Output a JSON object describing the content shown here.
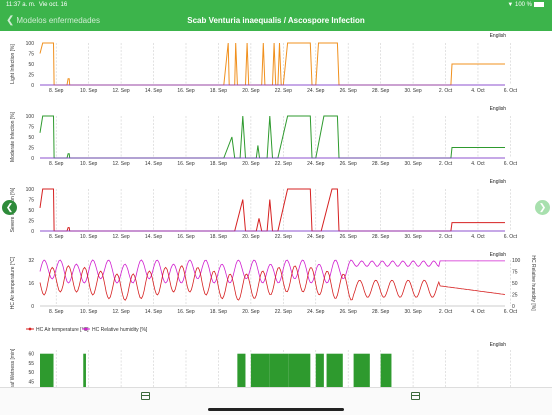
{
  "status": {
    "time": "11:37 a. m.",
    "date": "Vie oct. 16",
    "battery": "100 %"
  },
  "nav": {
    "back_label": "Modelos enfermedades",
    "title": "Scab Venturia inaequalis / Ascospore Infection"
  },
  "lang_label": "English",
  "x_ticks": [
    "8. Sep",
    "10. Sep",
    "12. Sep",
    "14. Sep",
    "16. Sep",
    "18. Sep",
    "20. Sep",
    "22. Sep",
    "24. Sep",
    "26. Sep",
    "28. Sep",
    "30. Sep",
    "2. Oct",
    "4. Oct",
    "6. Oct"
  ],
  "colors": {
    "orange": "#f0901e",
    "green": "#2e9a2e",
    "red": "#d62020",
    "magenta": "#d020d0",
    "accent": "#3cb44b"
  },
  "charts": [
    {
      "ylabel": "Light Infection [%]",
      "color": "#f0901e",
      "y_ticks": [
        "0",
        "25",
        "50",
        "75",
        "100"
      ],
      "ymax": 100,
      "points": [
        [
          0,
          75
        ],
        [
          0.5,
          100
        ],
        [
          2.5,
          100
        ],
        [
          2.6,
          0
        ],
        [
          5,
          0
        ],
        [
          5.2,
          15
        ],
        [
          5.4,
          15
        ],
        [
          5.5,
          0
        ],
        [
          34,
          0
        ],
        [
          34.8,
          100
        ],
        [
          35,
          0
        ],
        [
          36,
          0
        ],
        [
          36.2,
          100
        ],
        [
          36.5,
          0
        ],
        [
          38,
          0
        ],
        [
          38.3,
          100
        ],
        [
          38.6,
          0
        ],
        [
          41,
          0
        ],
        [
          41.3,
          100
        ],
        [
          41.6,
          0
        ],
        [
          43,
          0
        ],
        [
          43.3,
          100
        ],
        [
          43.6,
          0
        ],
        [
          44,
          0
        ],
        [
          44.3,
          100
        ],
        [
          44.6,
          0
        ],
        [
          45,
          0
        ],
        [
          45.8,
          100
        ],
        [
          49,
          100
        ],
        [
          50,
          100
        ],
        [
          50.3,
          0
        ],
        [
          51,
          0
        ],
        [
          51.5,
          100
        ],
        [
          55,
          100
        ],
        [
          55.3,
          0
        ],
        [
          76,
          0
        ],
        [
          76.2,
          50
        ],
        [
          86,
          50
        ]
      ]
    },
    {
      "ylabel": "Moderate Infection [%]",
      "color": "#2e9a2e",
      "y_ticks": [
        "0",
        "25",
        "50",
        "75",
        "100"
      ],
      "ymax": 100,
      "points": [
        [
          0,
          60
        ],
        [
          0.5,
          100
        ],
        [
          2.5,
          100
        ],
        [
          2.6,
          0
        ],
        [
          5,
          0
        ],
        [
          5.2,
          10
        ],
        [
          5.4,
          10
        ],
        [
          5.5,
          0
        ],
        [
          34,
          0
        ],
        [
          35.5,
          50
        ],
        [
          36,
          0
        ],
        [
          37,
          0
        ],
        [
          37.5,
          100
        ],
        [
          38,
          0
        ],
        [
          40,
          0
        ],
        [
          40.3,
          30
        ],
        [
          40.6,
          0
        ],
        [
          42,
          0
        ],
        [
          42.5,
          100
        ],
        [
          43,
          0
        ],
        [
          44,
          0
        ],
        [
          45.8,
          100
        ],
        [
          50,
          100
        ],
        [
          50.3,
          0
        ],
        [
          51,
          0
        ],
        [
          52.5,
          100
        ],
        [
          55,
          100
        ],
        [
          55.3,
          0
        ],
        [
          76,
          0
        ],
        [
          76.2,
          25
        ],
        [
          86,
          25
        ]
      ]
    },
    {
      "ylabel": "Severe Infection [%]",
      "color": "#d62020",
      "y_ticks": [
        "0",
        "25",
        "50",
        "75",
        "100"
      ],
      "ymax": 100,
      "points": [
        [
          0,
          55
        ],
        [
          0.5,
          100
        ],
        [
          2.5,
          100
        ],
        [
          2.6,
          0
        ],
        [
          5,
          0
        ],
        [
          5.2,
          8
        ],
        [
          5.4,
          8
        ],
        [
          5.5,
          0
        ],
        [
          36,
          0
        ],
        [
          37.5,
          75
        ],
        [
          38,
          0
        ],
        [
          40,
          0
        ],
        [
          40.5,
          30
        ],
        [
          41,
          0
        ],
        [
          42,
          0
        ],
        [
          42.5,
          75
        ],
        [
          43,
          0
        ],
        [
          44,
          0
        ],
        [
          45.8,
          100
        ],
        [
          50,
          100
        ],
        [
          50.3,
          0
        ],
        [
          52,
          0
        ],
        [
          54,
          100
        ],
        [
          55,
          100
        ],
        [
          55.3,
          0
        ],
        [
          76,
          0
        ],
        [
          76.2,
          20
        ],
        [
          86,
          20
        ]
      ]
    }
  ],
  "climate": {
    "ylabel_left": "HC Air temperature [°C]",
    "ylabel_right": "HC Relative humidity [%]",
    "y_ticks_left": [
      "0",
      "16",
      "32"
    ],
    "y_ticks_right": [
      "0",
      "25",
      "50",
      "75",
      "100"
    ],
    "legend": [
      {
        "label": "HC Air temperature [°C]",
        "color": "#d62020"
      },
      {
        "label": "HC Relative humidity [%]",
        "color": "#d020d0"
      }
    ]
  },
  "wetness": {
    "ylabel": "Leaf Wetness [min]",
    "y_ticks": [
      "45",
      "50",
      "55",
      "60"
    ],
    "color": "#2e9a2e",
    "bars": [
      [
        0,
        2.5
      ],
      [
        8,
        8.5
      ],
      [
        36.5,
        38
      ],
      [
        39,
        42.5
      ],
      [
        42.5,
        46
      ],
      [
        46,
        50
      ],
      [
        51,
        52.5
      ],
      [
        53,
        56
      ],
      [
        58,
        61
      ],
      [
        63,
        65
      ]
    ]
  }
}
